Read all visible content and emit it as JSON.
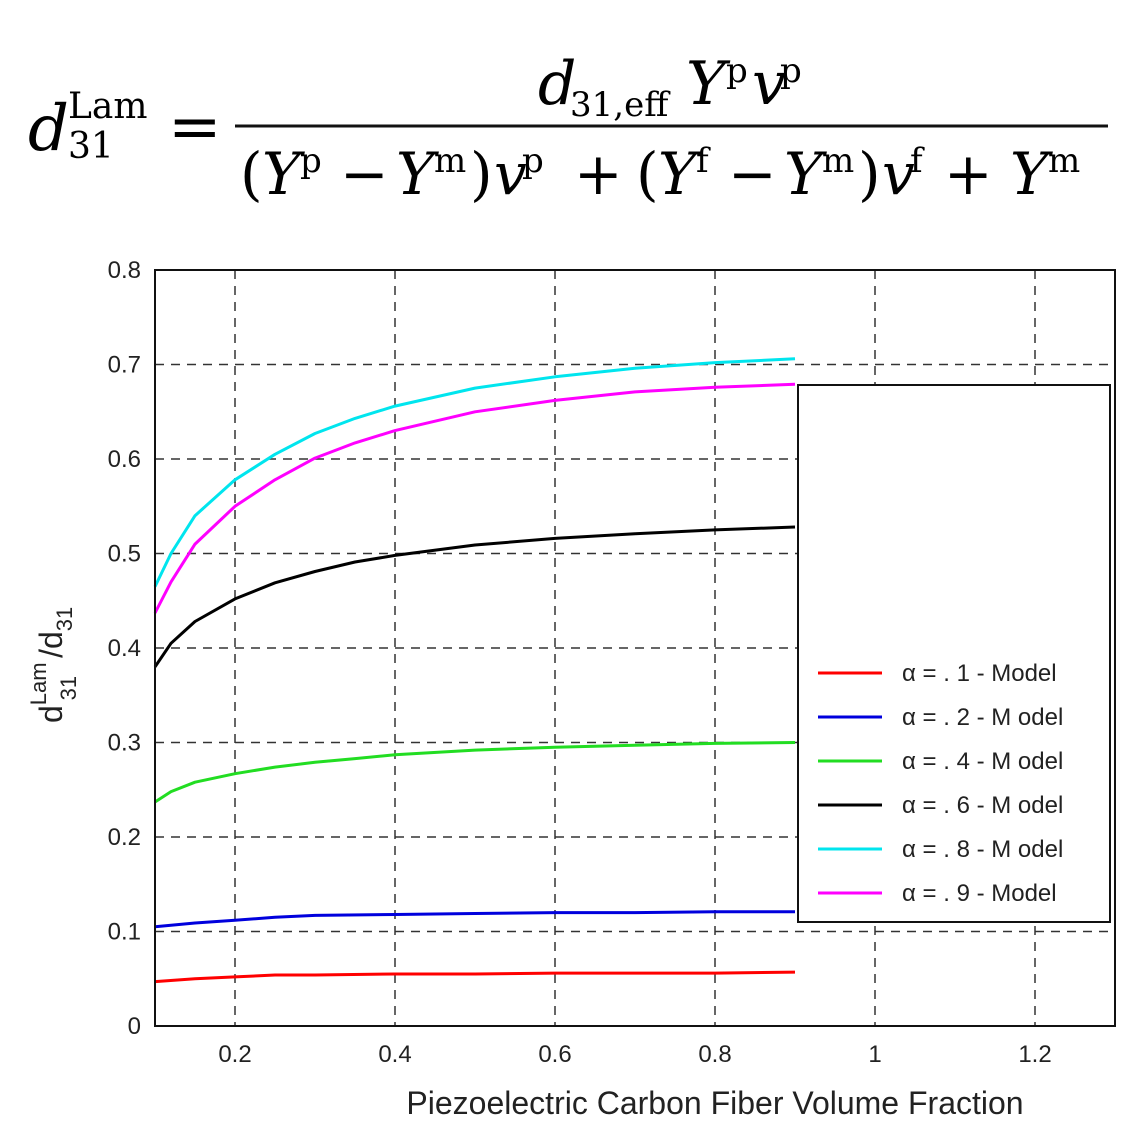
{
  "formula": {
    "lhs_symbol": "d",
    "lhs_sup": "Lam",
    "lhs_sub": "31",
    "equals": "=",
    "numerator": {
      "d": "d",
      "d_sub": "31,eff",
      "Y": "Y",
      "Y_sup": "p",
      "v": "v",
      "v_sup": "p"
    },
    "denominator": {
      "open1": "(",
      "Y1": "Y",
      "Y1_sup": "p",
      "minus1": "−",
      "Y2": "Y",
      "Y2_sup": "m",
      "close1": ")",
      "v1": "v",
      "v1_sup": "p",
      "plus1": "+",
      "open2": "(",
      "Y3": "Y",
      "Y3_sup": "f",
      "minus2": "−",
      "Y4": "Y",
      "Y4_sup": "m",
      "close2": ")",
      "v2": "v",
      "v2_sup": "f",
      "plus2": "+",
      "Y5": "Y",
      "Y5_sup": "m"
    }
  },
  "chart_data": {
    "type": "line",
    "xlabel": "Piezoelectric Carbon Fiber Volume Fraction",
    "ylabel_main": "d",
    "ylabel_sup": "Lam",
    "ylabel_sub": "31",
    "ylabel_slash": "/d",
    "ylabel_sub2": "31",
    "xlim": [
      0.1,
      1.3
    ],
    "ylim": [
      0,
      0.8
    ],
    "xticks": [
      0.2,
      0.4,
      0.6,
      0.8,
      1,
      1.2
    ],
    "xtick_labels": [
      "0.2",
      "0.4",
      "0.6",
      "0.8",
      "1",
      "1.2"
    ],
    "yticks": [
      0,
      0.1,
      0.2,
      0.3,
      0.4,
      0.5,
      0.6,
      0.7,
      0.8
    ],
    "ytick_labels": [
      "0",
      "0.1",
      "0.2",
      "0.3",
      "0.4",
      "0.5",
      "0.6",
      "0.7",
      "0.8"
    ],
    "grid": true,
    "legend_position": "right",
    "series": [
      {
        "name": "α = . 1 - Model",
        "color": "#ff0000",
        "x": [
          0.1,
          0.15,
          0.2,
          0.25,
          0.3,
          0.4,
          0.5,
          0.6,
          0.7,
          0.8,
          0.9
        ],
        "y": [
          0.047,
          0.05,
          0.052,
          0.054,
          0.054,
          0.055,
          0.055,
          0.056,
          0.056,
          0.056,
          0.057
        ]
      },
      {
        "name": "α = . 2 - M odel",
        "color": "#0000dd",
        "x": [
          0.1,
          0.15,
          0.2,
          0.25,
          0.3,
          0.4,
          0.5,
          0.6,
          0.7,
          0.8,
          0.9
        ],
        "y": [
          0.105,
          0.109,
          0.112,
          0.115,
          0.117,
          0.118,
          0.119,
          0.12,
          0.12,
          0.121,
          0.121
        ]
      },
      {
        "name": "α = . 4 - M odel",
        "color": "#22dd22",
        "x": [
          0.1,
          0.12,
          0.15,
          0.2,
          0.25,
          0.3,
          0.35,
          0.4,
          0.5,
          0.6,
          0.7,
          0.8,
          0.9
        ],
        "y": [
          0.237,
          0.248,
          0.258,
          0.267,
          0.274,
          0.279,
          0.283,
          0.287,
          0.292,
          0.295,
          0.297,
          0.299,
          0.3
        ]
      },
      {
        "name": "α = . 6 - M odel",
        "color": "#000000",
        "x": [
          0.1,
          0.12,
          0.15,
          0.2,
          0.25,
          0.3,
          0.35,
          0.4,
          0.5,
          0.6,
          0.7,
          0.8,
          0.9
        ],
        "y": [
          0.38,
          0.405,
          0.428,
          0.452,
          0.469,
          0.481,
          0.491,
          0.498,
          0.509,
          0.516,
          0.521,
          0.525,
          0.528
        ]
      },
      {
        "name": "α = . 8 - M odel",
        "color": "#00e5ee",
        "x": [
          0.1,
          0.12,
          0.15,
          0.2,
          0.25,
          0.3,
          0.35,
          0.4,
          0.5,
          0.6,
          0.7,
          0.8,
          0.9
        ],
        "y": [
          0.465,
          0.5,
          0.54,
          0.578,
          0.605,
          0.627,
          0.643,
          0.656,
          0.675,
          0.687,
          0.696,
          0.702,
          0.706
        ]
      },
      {
        "name": "α = . 9 - Model",
        "color": "#ff00ff",
        "x": [
          0.1,
          0.12,
          0.15,
          0.2,
          0.25,
          0.3,
          0.35,
          0.4,
          0.5,
          0.6,
          0.7,
          0.8,
          0.9
        ],
        "y": [
          0.437,
          0.47,
          0.51,
          0.55,
          0.578,
          0.601,
          0.617,
          0.63,
          0.65,
          0.662,
          0.671,
          0.676,
          0.679
        ]
      }
    ]
  }
}
